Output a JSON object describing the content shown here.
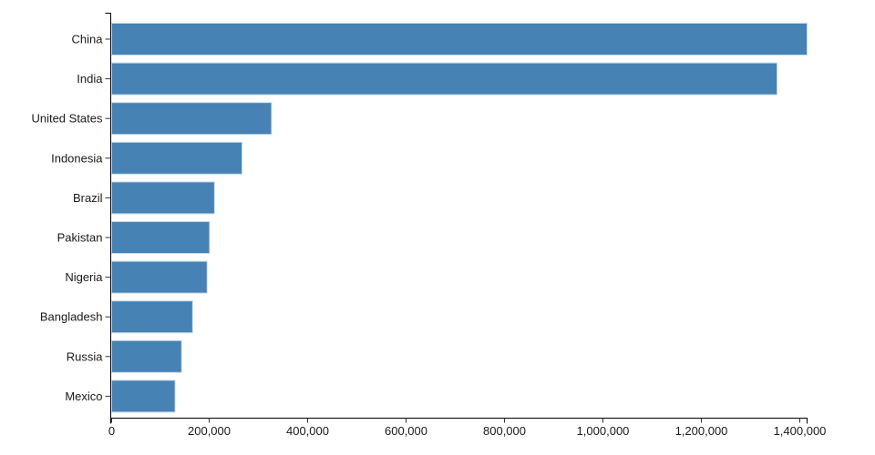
{
  "chart_data": {
    "type": "bar",
    "orientation": "horizontal",
    "title": "",
    "xlabel": "",
    "ylabel": "",
    "categories": [
      "China",
      "India",
      "United States",
      "Indonesia",
      "Brazil",
      "Pakistan",
      "Nigeria",
      "Bangladesh",
      "Russia",
      "Mexico"
    ],
    "values": [
      1415046,
      1354052,
      326767,
      266795,
      210868,
      200814,
      195875,
      166368,
      143965,
      130759
    ],
    "xlim": [
      0,
      1415046
    ],
    "x_ticks": [
      0,
      200000,
      400000,
      600000,
      800000,
      1000000,
      1200000,
      1400000
    ],
    "x_tick_labels": [
      "0",
      "200,000",
      "400,000",
      "600,000",
      "800,000",
      "1,000,000",
      "1,200,000",
      "1,400,000"
    ],
    "grid": false,
    "legend": null,
    "colors": {
      "bar_fill": "#4682b4",
      "bar_edge": "#c8dbec",
      "axis_line": "#000000",
      "tick_mark": "#333333",
      "tick_text": "#1a1a1a",
      "background": "#ffffff"
    }
  }
}
